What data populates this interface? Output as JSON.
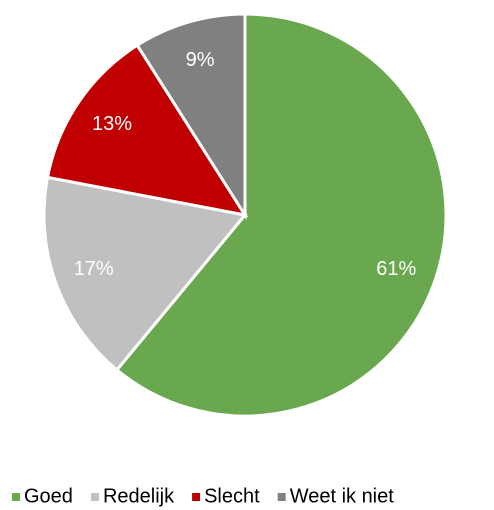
{
  "chart_data": {
    "type": "pie",
    "categories": [
      "Goed",
      "Redelijk",
      "Slecht",
      "Weet ik niet"
    ],
    "values": [
      61,
      17,
      13,
      9
    ],
    "value_labels": [
      "61%",
      "17%",
      "13%",
      "9%"
    ],
    "colors": [
      "#6aa84f",
      "#c0c0c0",
      "#c00000",
      "#808080"
    ],
    "legend": "bottom"
  }
}
